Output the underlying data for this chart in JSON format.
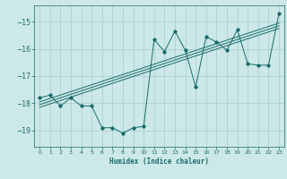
{
  "xlabel": "Humidex (Indice chaleur)",
  "bg_color": "#cce8e8",
  "grid_color": "#aacccc",
  "line_color": "#1a6b6b",
  "xlim": [
    -0.5,
    23.5
  ],
  "ylim": [
    -19.6,
    -14.4
  ],
  "yticks": [
    -19,
    -18,
    -17,
    -16,
    -15
  ],
  "xticks": [
    0,
    1,
    2,
    3,
    4,
    5,
    6,
    7,
    8,
    9,
    10,
    11,
    12,
    13,
    14,
    15,
    16,
    17,
    18,
    19,
    20,
    21,
    22,
    23
  ],
  "data_x": [
    0,
    1,
    2,
    3,
    4,
    5,
    6,
    7,
    8,
    9,
    10,
    11,
    12,
    13,
    14,
    15,
    16,
    17,
    18,
    19,
    20,
    21,
    22,
    23
  ],
  "data_y": [
    -17.8,
    -17.7,
    -18.1,
    -17.8,
    -18.1,
    -18.1,
    -18.9,
    -18.9,
    -19.1,
    -18.9,
    -18.85,
    -15.65,
    -16.1,
    -15.35,
    -16.05,
    -17.4,
    -15.55,
    -15.75,
    -16.05,
    -15.3,
    -16.55,
    -16.6,
    -16.6,
    -14.7
  ],
  "reg_lines": [
    {
      "x0": 0,
      "y0": -17.95,
      "x1": 23,
      "y1": -15.05
    },
    {
      "x0": 0,
      "y0": -18.05,
      "x1": 23,
      "y1": -15.15
    },
    {
      "x0": 0,
      "y0": -18.15,
      "x1": 23,
      "y1": -15.25
    }
  ]
}
